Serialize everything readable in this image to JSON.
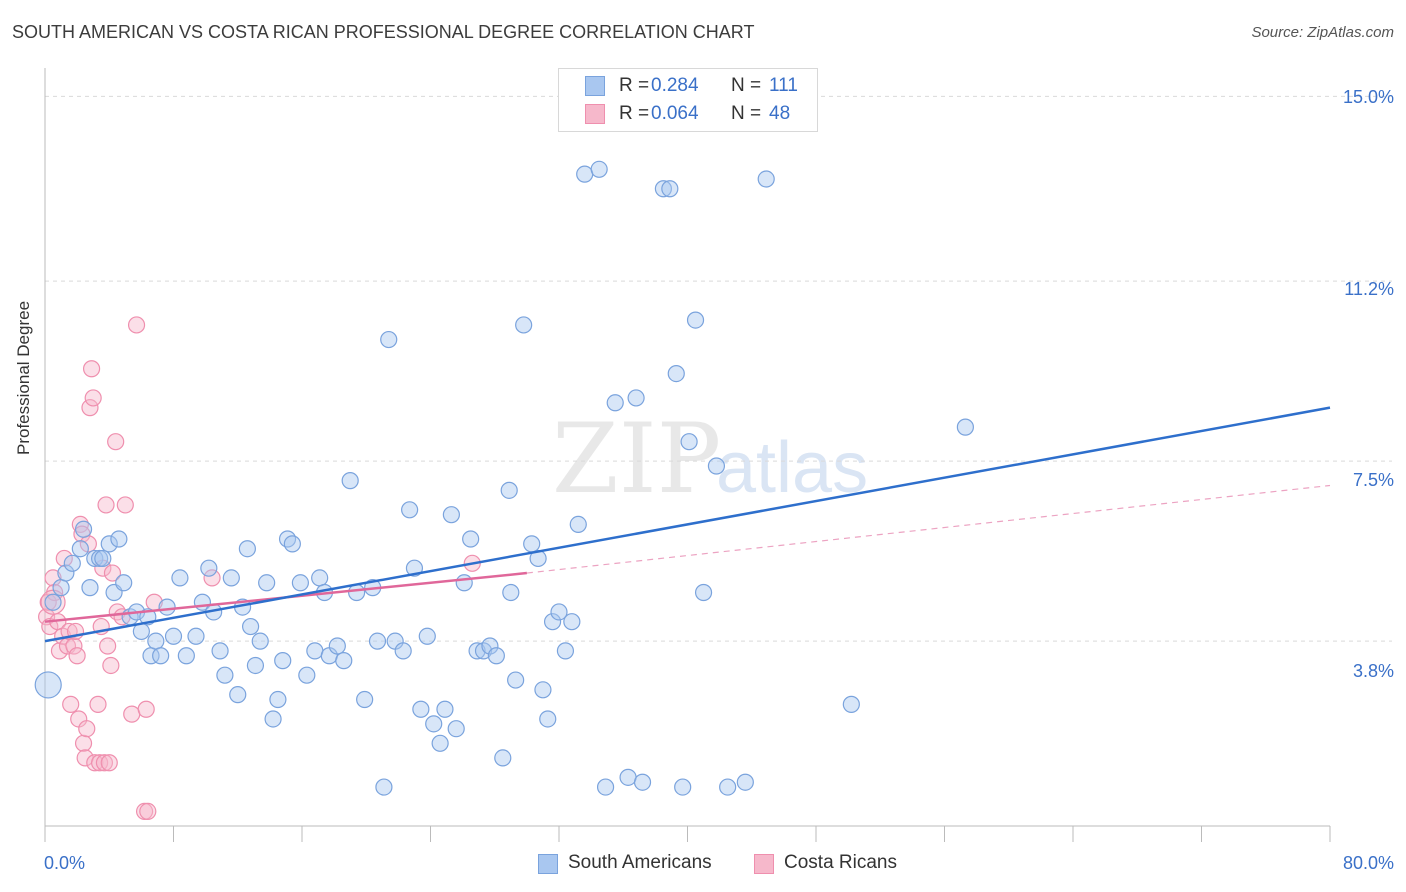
{
  "header": {
    "title": "SOUTH AMERICAN VS COSTA RICAN PROFESSIONAL DEGREE CORRELATION CHART",
    "source": "Source: ZipAtlas.com"
  },
  "legend": {
    "rows": [
      {
        "r_label": "R =",
        "r_value": "0.284",
        "n_label": "N =",
        "n_value": "111"
      },
      {
        "r_label": "R =",
        "r_value": "0.064",
        "n_label": "N =",
        "n_value": "48"
      }
    ]
  },
  "bottom_legend": [
    "South Americans",
    "Costa Ricans"
  ],
  "colors": {
    "blue_fill": "#a9c7f0",
    "blue_stroke": "#7aa3dd",
    "blue_line": "#2e6fcc",
    "pink_fill": "#f6b8cb",
    "pink_stroke": "#ef8fae",
    "pink_line": "#e0679a",
    "grid": "#d9d9d9",
    "tick_label": "#3a70c8"
  },
  "chart_data": {
    "type": "scatter",
    "title": "SOUTH AMERICAN VS COSTA RICAN PROFESSIONAL DEGREE CORRELATION CHART",
    "xlabel": "",
    "ylabel": "Professional Degree",
    "xlim": [
      0,
      80
    ],
    "ylim": [
      0,
      15.5
    ],
    "x_tick_labels": [
      "0.0%",
      "80.0%"
    ],
    "y_ticks": [
      3.8,
      7.5,
      11.2,
      15.0
    ],
    "y_tick_labels": [
      "3.8%",
      "7.5%",
      "11.2%",
      "15.0%"
    ],
    "grid": true,
    "legend_placement": "top-center",
    "watermark": "ZIPatlas",
    "series": [
      {
        "name": "South Americans",
        "r": 0.284,
        "n": 111,
        "trend": {
          "x": [
            0,
            80
          ],
          "y": [
            3.8,
            8.6
          ]
        },
        "points": [
          [
            0.2,
            2.9
          ],
          [
            0.5,
            4.6
          ],
          [
            1.0,
            4.9
          ],
          [
            1.3,
            5.2
          ],
          [
            1.7,
            5.4
          ],
          [
            2.2,
            5.7
          ],
          [
            2.4,
            6.1
          ],
          [
            2.8,
            4.9
          ],
          [
            3.1,
            5.5
          ],
          [
            3.4,
            5.5
          ],
          [
            3.6,
            5.5
          ],
          [
            4.0,
            5.8
          ],
          [
            4.3,
            4.8
          ],
          [
            4.6,
            5.9
          ],
          [
            4.9,
            5.0
          ],
          [
            5.3,
            4.3
          ],
          [
            5.7,
            4.4
          ],
          [
            6.0,
            4.0
          ],
          [
            6.4,
            4.3
          ],
          [
            6.6,
            3.5
          ],
          [
            6.9,
            3.8
          ],
          [
            7.2,
            3.5
          ],
          [
            7.6,
            4.5
          ],
          [
            8.0,
            3.9
          ],
          [
            8.4,
            5.1
          ],
          [
            8.8,
            3.5
          ],
          [
            9.4,
            3.9
          ],
          [
            9.8,
            4.6
          ],
          [
            10.2,
            5.3
          ],
          [
            10.5,
            4.4
          ],
          [
            10.9,
            3.6
          ],
          [
            11.2,
            3.1
          ],
          [
            11.6,
            5.1
          ],
          [
            12.0,
            2.7
          ],
          [
            12.3,
            4.5
          ],
          [
            12.6,
            5.7
          ],
          [
            12.8,
            4.1
          ],
          [
            13.1,
            3.3
          ],
          [
            13.4,
            3.8
          ],
          [
            13.8,
            5.0
          ],
          [
            14.2,
            2.2
          ],
          [
            14.5,
            2.6
          ],
          [
            14.8,
            3.4
          ],
          [
            15.1,
            5.9
          ],
          [
            15.4,
            5.8
          ],
          [
            15.9,
            5.0
          ],
          [
            16.3,
            3.1
          ],
          [
            16.8,
            3.6
          ],
          [
            17.1,
            5.1
          ],
          [
            17.4,
            4.8
          ],
          [
            17.7,
            3.5
          ],
          [
            18.2,
            3.7
          ],
          [
            18.6,
            3.4
          ],
          [
            19.0,
            7.1
          ],
          [
            19.4,
            4.8
          ],
          [
            19.9,
            2.6
          ],
          [
            20.4,
            4.9
          ],
          [
            20.7,
            3.8
          ],
          [
            21.1,
            0.8
          ],
          [
            21.4,
            10.0
          ],
          [
            21.8,
            3.8
          ],
          [
            22.3,
            3.6
          ],
          [
            22.7,
            6.5
          ],
          [
            23.0,
            5.3
          ],
          [
            23.4,
            2.4
          ],
          [
            23.8,
            3.9
          ],
          [
            24.2,
            2.1
          ],
          [
            24.6,
            1.7
          ],
          [
            24.9,
            2.4
          ],
          [
            25.3,
            6.4
          ],
          [
            25.6,
            2.0
          ],
          [
            26.1,
            5.0
          ],
          [
            26.5,
            5.9
          ],
          [
            26.9,
            3.6
          ],
          [
            27.3,
            3.6
          ],
          [
            27.7,
            3.7
          ],
          [
            28.1,
            3.5
          ],
          [
            28.5,
            1.4
          ],
          [
            28.9,
            6.9
          ],
          [
            29.3,
            3.0
          ],
          [
            29.8,
            10.3
          ],
          [
            30.3,
            5.8
          ],
          [
            30.7,
            5.5
          ],
          [
            31.0,
            2.8
          ],
          [
            31.3,
            2.2
          ],
          [
            31.6,
            4.2
          ],
          [
            32.0,
            4.4
          ],
          [
            32.4,
            3.6
          ],
          [
            32.8,
            4.2
          ],
          [
            33.2,
            6.2
          ],
          [
            33.6,
            13.4
          ],
          [
            34.5,
            13.5
          ],
          [
            34.9,
            0.8
          ],
          [
            35.5,
            8.7
          ],
          [
            36.3,
            1.0
          ],
          [
            36.8,
            8.8
          ],
          [
            37.2,
            0.9
          ],
          [
            38.5,
            13.1
          ],
          [
            38.9,
            13.1
          ],
          [
            39.3,
            9.3
          ],
          [
            39.7,
            0.8
          ],
          [
            40.1,
            7.9
          ],
          [
            40.5,
            10.4
          ],
          [
            41.0,
            4.8
          ],
          [
            42.5,
            0.8
          ],
          [
            41.8,
            7.4
          ],
          [
            43.6,
            0.9
          ],
          [
            44.9,
            13.3
          ],
          [
            50.2,
            2.5
          ],
          [
            57.3,
            8.2
          ],
          [
            29.0,
            4.8
          ]
        ]
      },
      {
        "name": "Costa Ricans",
        "r": 0.064,
        "n": 48,
        "trend": {
          "x": [
            0,
            30
          ],
          "y": [
            4.2,
            5.2
          ]
        },
        "trend_extension": {
          "x": [
            30,
            80
          ],
          "y": [
            5.2,
            7.0
          ]
        },
        "points": [
          [
            0.1,
            4.3
          ],
          [
            0.2,
            4.6
          ],
          [
            0.3,
            4.1
          ],
          [
            0.5,
            5.1
          ],
          [
            0.6,
            4.8
          ],
          [
            0.8,
            4.2
          ],
          [
            0.9,
            3.6
          ],
          [
            1.1,
            3.9
          ],
          [
            1.2,
            5.5
          ],
          [
            1.4,
            3.7
          ],
          [
            1.5,
            4.0
          ],
          [
            1.6,
            2.5
          ],
          [
            1.8,
            3.7
          ],
          [
            1.9,
            4.0
          ],
          [
            2.0,
            3.5
          ],
          [
            2.1,
            2.2
          ],
          [
            2.2,
            6.2
          ],
          [
            2.3,
            6.0
          ],
          [
            2.4,
            1.7
          ],
          [
            2.5,
            1.4
          ],
          [
            2.6,
            2.0
          ],
          [
            2.7,
            5.8
          ],
          [
            2.8,
            8.6
          ],
          [
            2.9,
            9.4
          ],
          [
            3.0,
            8.8
          ],
          [
            3.1,
            1.3
          ],
          [
            3.3,
            2.5
          ],
          [
            3.4,
            1.3
          ],
          [
            3.5,
            4.1
          ],
          [
            3.6,
            5.3
          ],
          [
            3.7,
            1.3
          ],
          [
            3.8,
            6.6
          ],
          [
            3.9,
            3.7
          ],
          [
            4.0,
            1.3
          ],
          [
            4.1,
            3.3
          ],
          [
            4.2,
            5.2
          ],
          [
            4.4,
            7.9
          ],
          [
            4.5,
            4.4
          ],
          [
            4.8,
            4.3
          ],
          [
            5.0,
            6.6
          ],
          [
            5.4,
            2.3
          ],
          [
            5.7,
            10.3
          ],
          [
            6.2,
            0.3
          ],
          [
            6.3,
            2.4
          ],
          [
            6.4,
            0.3
          ],
          [
            6.8,
            4.6
          ],
          [
            10.4,
            5.1
          ],
          [
            26.6,
            5.4
          ]
        ]
      }
    ]
  }
}
